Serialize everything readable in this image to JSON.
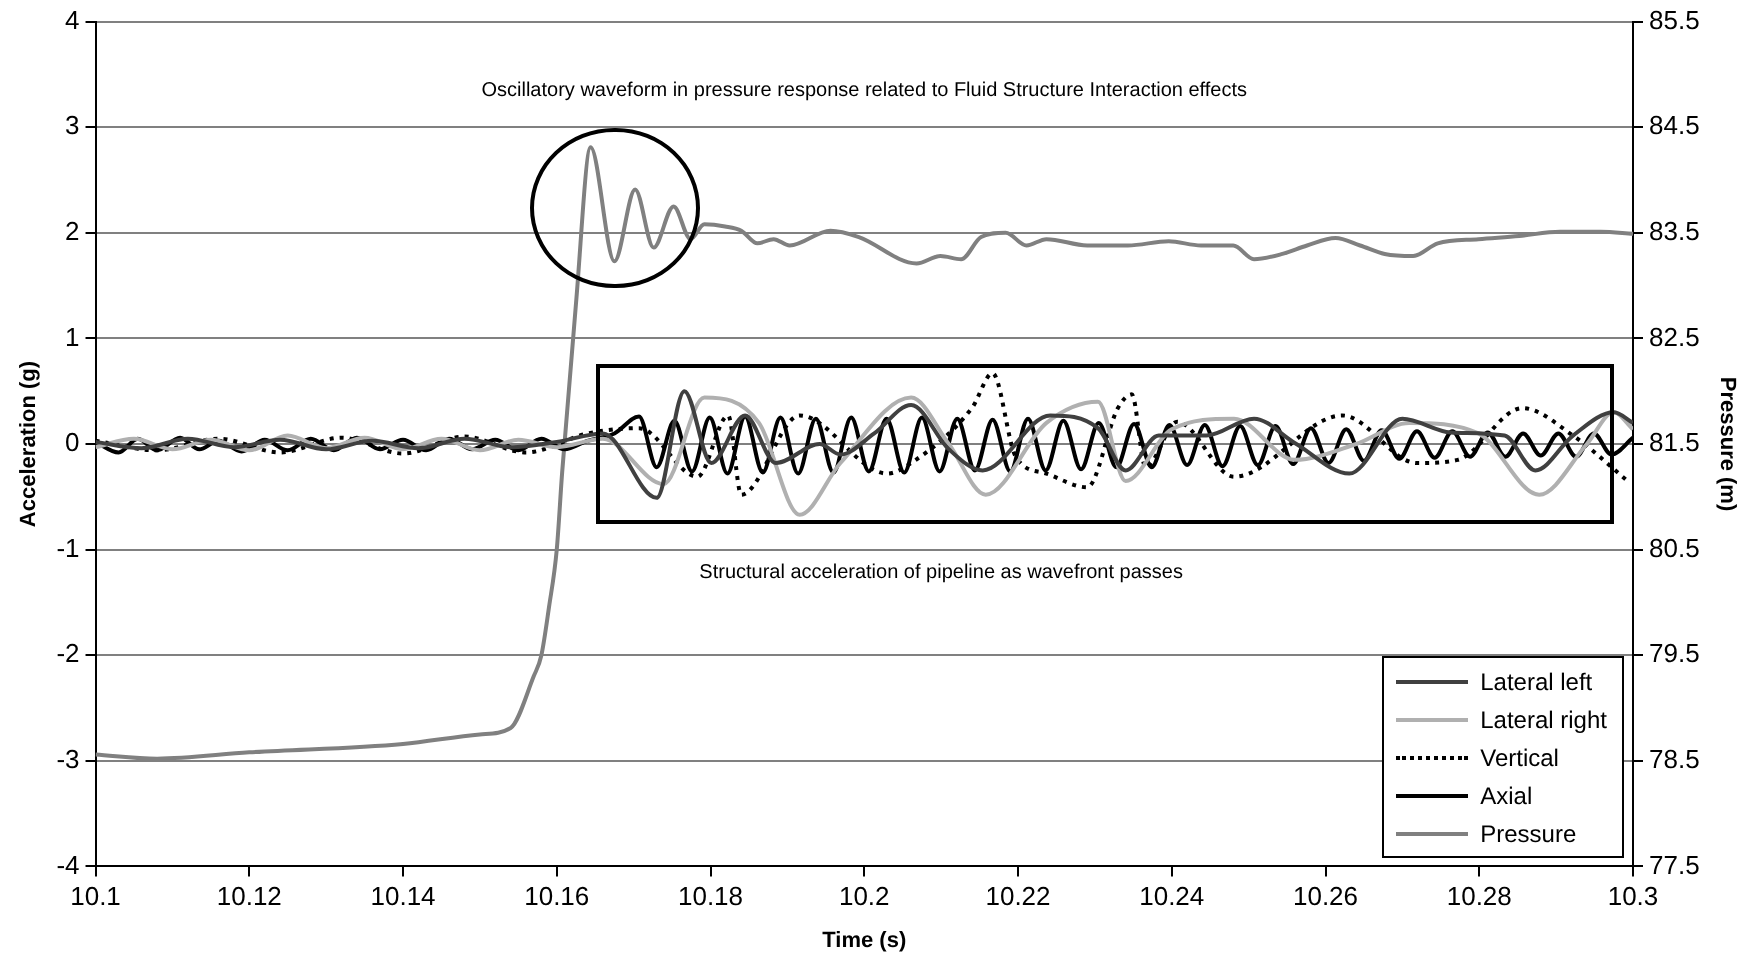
{
  "chart_data": {
    "type": "line",
    "xlabel": "Time (s)",
    "ylabel": "Acceleration (g)",
    "y2label": "Pressure (m)",
    "annotations": [
      "Oscillatory waveform in pressure response related to Fluid Structure Interaction effects",
      "Structural acceleration of pipeline as wavefront passes"
    ],
    "xlim": [
      10.1,
      10.3
    ],
    "xticks": [
      10.1,
      10.12,
      10.14,
      10.16,
      10.18,
      10.2,
      10.22,
      10.24,
      10.26,
      10.28,
      10.3
    ],
    "ylim": [
      -4,
      4
    ],
    "yticks": [
      -4,
      -3,
      -2,
      -1,
      0,
      1,
      2,
      3,
      4
    ],
    "y2lim": [
      77.5,
      85.5
    ],
    "y2ticks": [
      77.5,
      78.5,
      79.5,
      80.5,
      81.5,
      82.5,
      83.5,
      84.5,
      85.5
    ],
    "grid": "y",
    "legend": "bottom right",
    "marker": "none",
    "series": [
      {
        "name": "Lateral left",
        "color": "#404040",
        "x": [
          10.1,
          10.106,
          10.112,
          10.118,
          10.124,
          10.13,
          10.136,
          10.142,
          10.148,
          10.154,
          10.16,
          10.166,
          10.173,
          10.1766,
          10.1801,
          10.1845,
          10.1885,
          10.1942,
          10.1969,
          10.2013,
          10.2061,
          10.211,
          10.2154,
          10.2242,
          10.2304,
          10.234,
          10.2383,
          10.2445,
          10.2507,
          10.256,
          10.2631,
          10.27,
          10.2763,
          10.2833,
          10.2873,
          10.2922,
          10.2975,
          10.3
        ],
        "values": [
          0.02,
          -0.04,
          0.05,
          -0.03,
          0.04,
          -0.05,
          0.03,
          -0.04,
          0.05,
          -0.03,
          0.02,
          0.1,
          -0.51,
          0.5,
          -0.18,
          0.27,
          -0.18,
          0,
          -0.1,
          0.1,
          0.37,
          -0.05,
          -0.25,
          0.27,
          0.15,
          -0.25,
          0.08,
          0.08,
          0.24,
          0.01,
          -0.28,
          0.24,
          0.11,
          0.08,
          -0.25,
          0.08,
          0.3,
          0.2
        ]
      },
      {
        "name": "Lateral right",
        "color": "#b0b0b0",
        "x": [
          10.1,
          10.105,
          10.11,
          10.115,
          10.12,
          10.125,
          10.13,
          10.135,
          10.14,
          10.145,
          10.15,
          10.155,
          10.16,
          10.166,
          10.1739,
          10.1792,
          10.1863,
          10.1916,
          10.1969,
          10.2061,
          10.211,
          10.2158,
          10.2237,
          10.2304,
          10.234,
          10.24,
          10.2481,
          10.256,
          10.264,
          10.2709,
          10.2799,
          10.2878,
          10.294,
          10.2975,
          10.3
        ],
        "values": [
          -0.03,
          0.05,
          -0.05,
          0.04,
          -0.06,
          0.08,
          -0.04,
          0.06,
          -0.05,
          0.05,
          -0.06,
          0.04,
          -0.03,
          0.05,
          -0.38,
          0.44,
          0.2,
          -0.67,
          -0.18,
          0.44,
          0,
          -0.48,
          0.2,
          0.4,
          -0.35,
          0.14,
          0.24,
          -0.15,
          0.0,
          0.2,
          0.1,
          -0.48,
          0,
          0.3,
          0.14
        ]
      },
      {
        "name": "Vertical",
        "color": "#000000",
        "line_style": "dotted",
        "x": [
          10.1,
          10.108,
          10.116,
          10.124,
          10.132,
          10.14,
          10.148,
          10.156,
          10.164,
          10.1707,
          10.1783,
          10.1823,
          10.184,
          10.1916,
          10.203,
          10.2061,
          10.214,
          10.2167,
          10.2197,
          10.2237,
          10.229,
          10.233,
          10.2348,
          10.2366,
          10.2407,
          10.2481,
          10.2622,
          10.2719,
          10.2772,
          10.2856,
          10.2922,
          10.2993
        ],
        "values": [
          0.03,
          -0.06,
          0.05,
          -0.08,
          0.06,
          -0.09,
          0.07,
          -0.08,
          0.1,
          0.15,
          -0.31,
          0.27,
          -0.48,
          0.27,
          -0.28,
          -0.18,
          0.34,
          0.67,
          -0.12,
          -0.28,
          -0.41,
          0.34,
          0.47,
          -0.22,
          0.21,
          -0.31,
          0.27,
          -0.18,
          -0.15,
          0.34,
          0.08,
          -0.35
        ]
      },
      {
        "name": "Axial",
        "color": "#000000",
        "x": [
          10.1,
          10.103,
          10.1055,
          10.108,
          10.111,
          10.1135,
          10.116,
          10.119,
          10.122,
          10.125,
          10.128,
          10.131,
          10.134,
          10.137,
          10.14,
          10.143,
          10.146,
          10.149,
          10.152,
          10.155,
          10.158,
          10.161,
          10.164,
          10.1675,
          10.1707,
          10.173,
          10.1753,
          10.1776,
          10.1799,
          10.1822,
          10.1845,
          10.1868,
          10.1891,
          10.1914,
          10.1937,
          10.196,
          10.1983,
          10.2006,
          10.2029,
          10.2052,
          10.2075,
          10.2098,
          10.2121,
          10.2144,
          10.2167,
          10.219,
          10.2213,
          10.2236,
          10.2259,
          10.2282,
          10.2305,
          10.2328,
          10.2351,
          10.2374,
          10.2397,
          10.242,
          10.2443,
          10.2466,
          10.2489,
          10.2512,
          10.2535,
          10.2558,
          10.2581,
          10.2604,
          10.2627,
          10.265,
          10.2673,
          10.2696,
          10.2719,
          10.2742,
          10.2765,
          10.2788,
          10.2811,
          10.2834,
          10.2857,
          10.288,
          10.2903,
          10.2926,
          10.2949,
          10.2972,
          10.3
        ],
        "values": [
          0.02,
          -0.08,
          0.05,
          -0.06,
          0.06,
          -0.05,
          0.03,
          -0.07,
          0.04,
          -0.06,
          0.05,
          -0.06,
          0.06,
          -0.05,
          0.04,
          -0.06,
          0.05,
          -0.05,
          0.04,
          -0.06,
          0.05,
          -0.05,
          0.03,
          0.1,
          0.26,
          -0.22,
          0.22,
          -0.26,
          0.25,
          -0.28,
          0.26,
          -0.27,
          0.25,
          -0.28,
          0.24,
          -0.27,
          0.25,
          -0.26,
          0.24,
          -0.27,
          0.25,
          -0.26,
          0.24,
          -0.25,
          0.23,
          -0.26,
          0.24,
          -0.25,
          0.22,
          -0.24,
          0.2,
          -0.22,
          0.19,
          -0.22,
          0.18,
          -0.2,
          0.18,
          -0.21,
          0.17,
          -0.2,
          0.17,
          -0.19,
          0.15,
          -0.18,
          0.14,
          -0.16,
          0.13,
          -0.14,
          0.12,
          -0.13,
          0.12,
          -0.12,
          0.11,
          -0.12,
          0.1,
          -0.11,
          0.1,
          -0.12,
          0.1,
          -0.1,
          0.06
        ]
      },
      {
        "name": "Pressure",
        "color": "#808080",
        "axis": "y2",
        "x": [
          10.1,
          10.108,
          10.12,
          10.14,
          10.15,
          10.154,
          10.157,
          10.158,
          10.159,
          10.16,
          10.1607,
          10.1625,
          10.1644,
          10.1675,
          10.1702,
          10.1726,
          10.1752,
          10.1774,
          10.1792,
          10.1819,
          10.184,
          10.1861,
          10.1882,
          10.1903,
          10.1956,
          10.1993,
          10.2068,
          10.2099,
          10.2126,
          10.2152,
          10.2184,
          10.2211,
          10.2237,
          10.229,
          10.2343,
          10.2396,
          10.2438,
          10.248,
          10.2507,
          10.2544,
          10.2576,
          10.2613,
          10.2645,
          10.2677,
          10.2714,
          10.2746,
          10.2799,
          10.2852,
          10.2905,
          10.2958,
          10.3
        ],
        "values": [
          78.56,
          78.52,
          78.58,
          78.66,
          78.75,
          78.81,
          79.3,
          79.5,
          79.96,
          80.5,
          81.23,
          82.83,
          84.31,
          83.23,
          83.91,
          83.36,
          83.75,
          83.44,
          83.58,
          83.56,
          83.52,
          83.4,
          83.44,
          83.38,
          83.52,
          83.46,
          83.21,
          83.28,
          83.25,
          83.46,
          83.5,
          83.38,
          83.44,
          83.38,
          83.38,
          83.42,
          83.38,
          83.38,
          83.25,
          83.3,
          83.38,
          83.45,
          83.38,
          83.3,
          83.28,
          83.4,
          83.44,
          83.47,
          83.51,
          83.51,
          83.49
        ]
      }
    ]
  }
}
